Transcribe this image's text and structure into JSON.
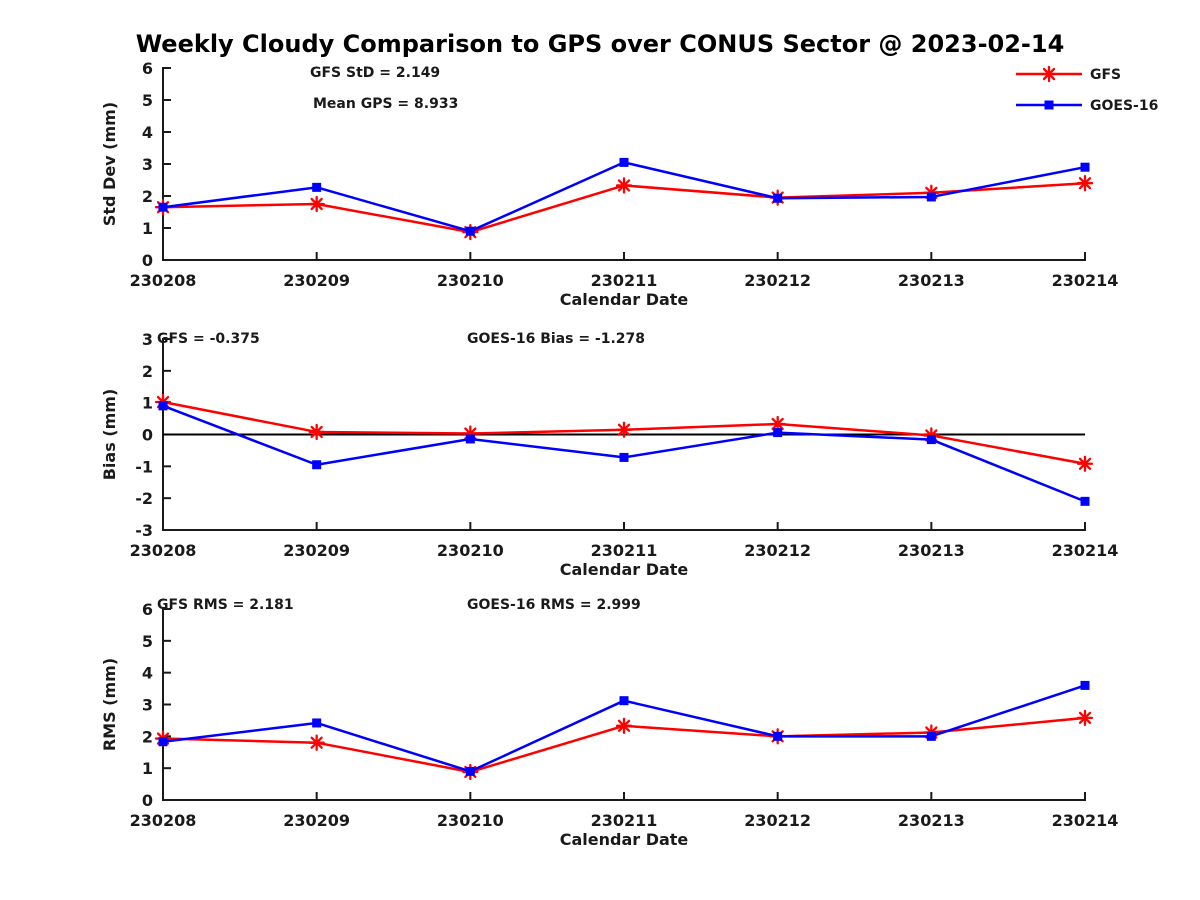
{
  "title": "Weekly Cloudy Comparison to GPS over CONUS Sector @ 2023-02-14",
  "axis_color": "#1a1a1a",
  "background_color": "#ffffff",
  "legend": {
    "position": "top-right",
    "items": [
      {
        "label": "GFS",
        "color": "#ff0000",
        "marker": "asterisk"
      },
      {
        "label": "GOES-16",
        "color": "#0000ff",
        "marker": "square"
      }
    ]
  },
  "chart_data": [
    {
      "type": "line",
      "ylabel": "Std Dev (mm)",
      "xlabel": "Calendar Date",
      "ylim": [
        0,
        6
      ],
      "yticks": [
        0,
        1,
        2,
        3,
        4,
        5,
        6
      ],
      "grid": false,
      "zero_line": false,
      "categories": [
        "230208",
        "230209",
        "230210",
        "230211",
        "230212",
        "230213",
        "230214"
      ],
      "series": [
        {
          "name": "GFS",
          "color": "#ff0000",
          "marker": "asterisk",
          "values": [
            1.65,
            1.75,
            0.87,
            2.33,
            1.95,
            2.1,
            2.4
          ]
        },
        {
          "name": "GOES-16",
          "color": "#0000ff",
          "marker": "square",
          "values": [
            1.65,
            2.27,
            0.9,
            3.05,
            1.93,
            1.97,
            2.9
          ]
        }
      ],
      "annotations": [
        {
          "text": "GFS StD = 2.149",
          "x": 310,
          "y": 77
        },
        {
          "text": "Mean GPS = 8.933",
          "x": 313,
          "y": 108
        }
      ]
    },
    {
      "type": "line",
      "ylabel": "Bias (mm)",
      "xlabel": "Calendar Date",
      "ylim": [
        -3,
        3
      ],
      "yticks": [
        -3,
        -2,
        -1,
        0,
        1,
        2,
        3
      ],
      "grid": false,
      "zero_line": true,
      "categories": [
        "230208",
        "230209",
        "230210",
        "230211",
        "230212",
        "230213",
        "230214"
      ],
      "series": [
        {
          "name": "GFS",
          "color": "#ff0000",
          "marker": "asterisk",
          "values": [
            1.02,
            0.08,
            0.03,
            0.15,
            0.33,
            -0.03,
            -0.92
          ]
        },
        {
          "name": "GOES-16",
          "color": "#0000ff",
          "marker": "square",
          "values": [
            0.9,
            -0.95,
            -0.14,
            -0.72,
            0.06,
            -0.16,
            -2.1
          ]
        }
      ],
      "annotations": [
        {
          "text": "GFS = -0.375",
          "x": 157,
          "y": 343
        },
        {
          "text": "GOES-16 Bias  = -1.278",
          "x": 467,
          "y": 343
        }
      ]
    },
    {
      "type": "line",
      "ylabel": "RMS (mm)",
      "xlabel": "Calendar Date",
      "ylim": [
        0,
        6
      ],
      "yticks": [
        0,
        1,
        2,
        3,
        4,
        5,
        6
      ],
      "grid": false,
      "zero_line": false,
      "categories": [
        "230208",
        "230209",
        "230210",
        "230211",
        "230212",
        "230213",
        "230214"
      ],
      "series": [
        {
          "name": "GFS",
          "color": "#ff0000",
          "marker": "asterisk",
          "values": [
            1.93,
            1.8,
            0.88,
            2.33,
            2.0,
            2.12,
            2.58
          ]
        },
        {
          "name": "GOES-16",
          "color": "#0000ff",
          "marker": "square",
          "values": [
            1.83,
            2.42,
            0.9,
            3.12,
            2.0,
            2.0,
            3.6
          ]
        }
      ],
      "annotations": [
        {
          "text": "GFS RMS = 2.181",
          "x": 157,
          "y": 609
        },
        {
          "text": "GOES-16 RMS = 2.999",
          "x": 467,
          "y": 609
        }
      ]
    }
  ]
}
